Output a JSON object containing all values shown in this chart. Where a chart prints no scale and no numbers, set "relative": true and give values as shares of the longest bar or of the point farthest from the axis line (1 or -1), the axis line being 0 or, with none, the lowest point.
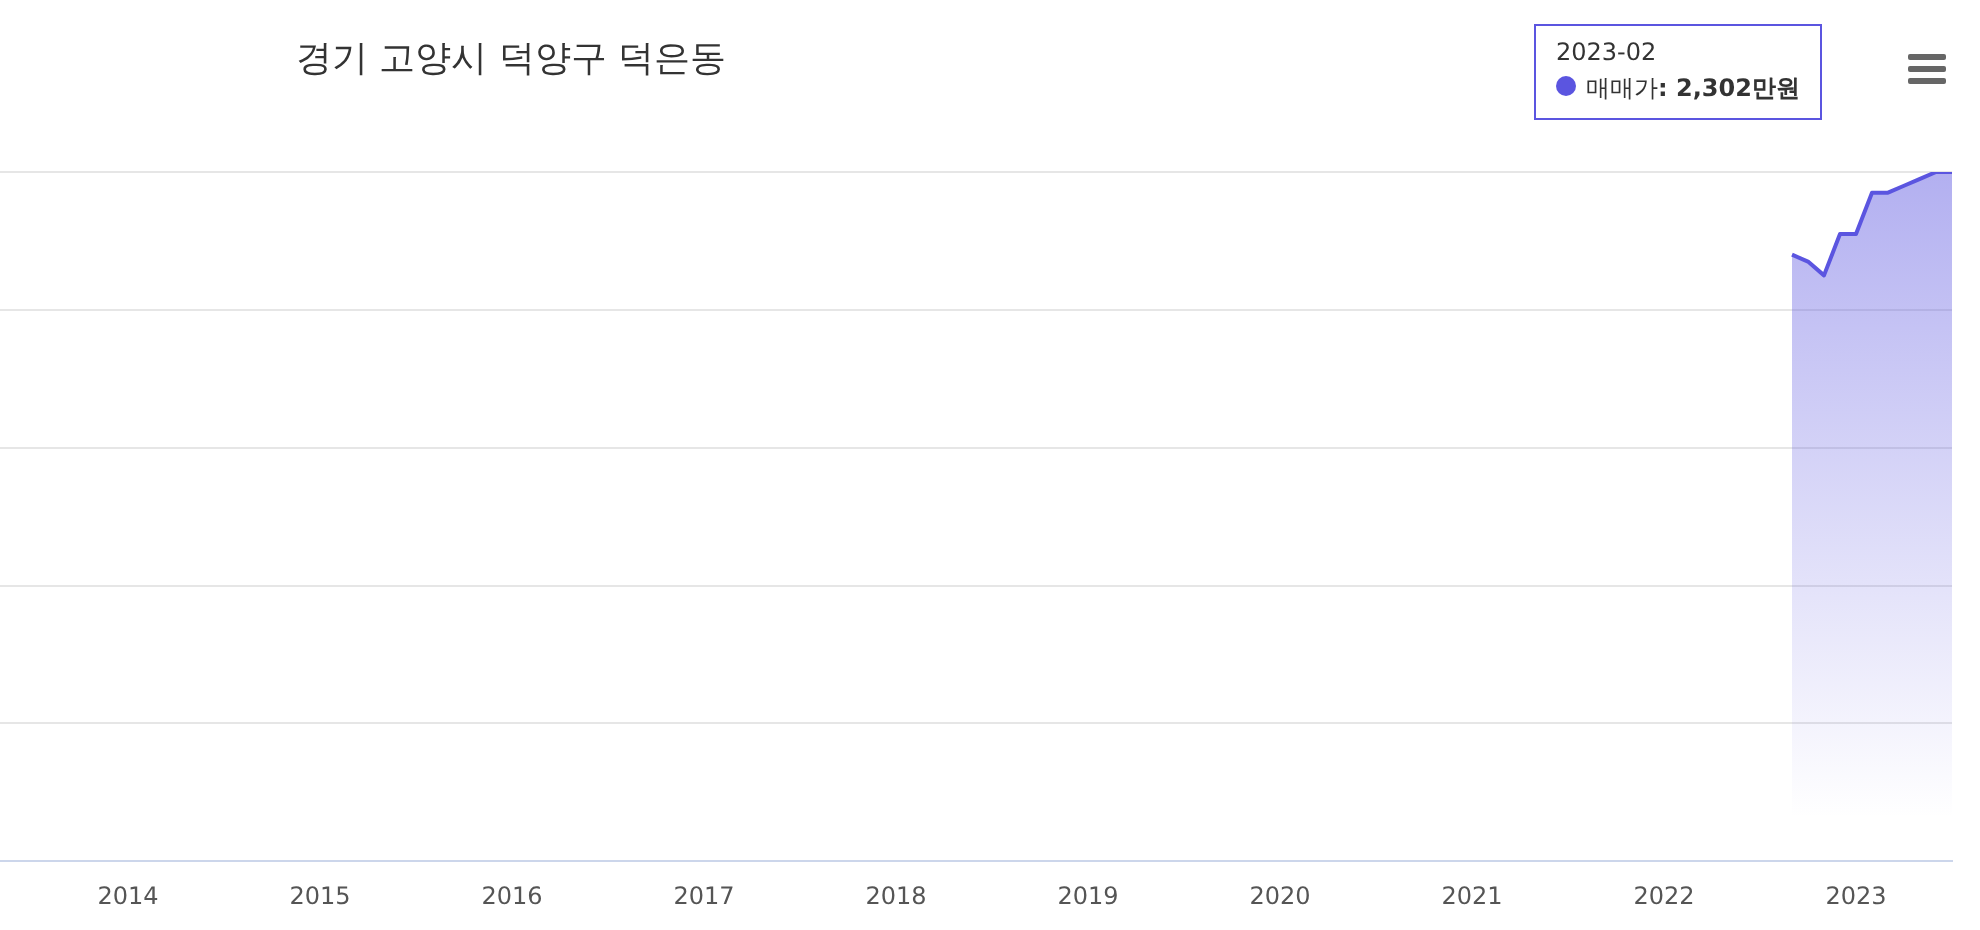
{
  "chart_data": {
    "type": "area",
    "title": "경기 고양시 덕양구 덕은동",
    "relative": true,
    "x": [
      "2022-09",
      "2022-10",
      "2022-11",
      "2022-12",
      "2023-01",
      "2023-02",
      "2023-03",
      "2023-04",
      "2023-05",
      "2023-06",
      "2023-07"
    ],
    "series": [
      {
        "name": "매매가",
        "color": "#5b55e0",
        "values": [
          0.88,
          0.87,
          0.85,
          0.91,
          0.91,
          0.97,
          0.97,
          0.98,
          0.99,
          1.0,
          1.0
        ]
      }
    ],
    "xlim": [
      "2013-05",
      "2023-07"
    ],
    "xticks": [
      "2014",
      "2015",
      "2016",
      "2017",
      "2018",
      "2019",
      "2020",
      "2021",
      "2022",
      "2023"
    ],
    "grid": "y",
    "legend": "top right",
    "annotations": [
      "2023-02",
      ": 2,302만원"
    ]
  }
}
